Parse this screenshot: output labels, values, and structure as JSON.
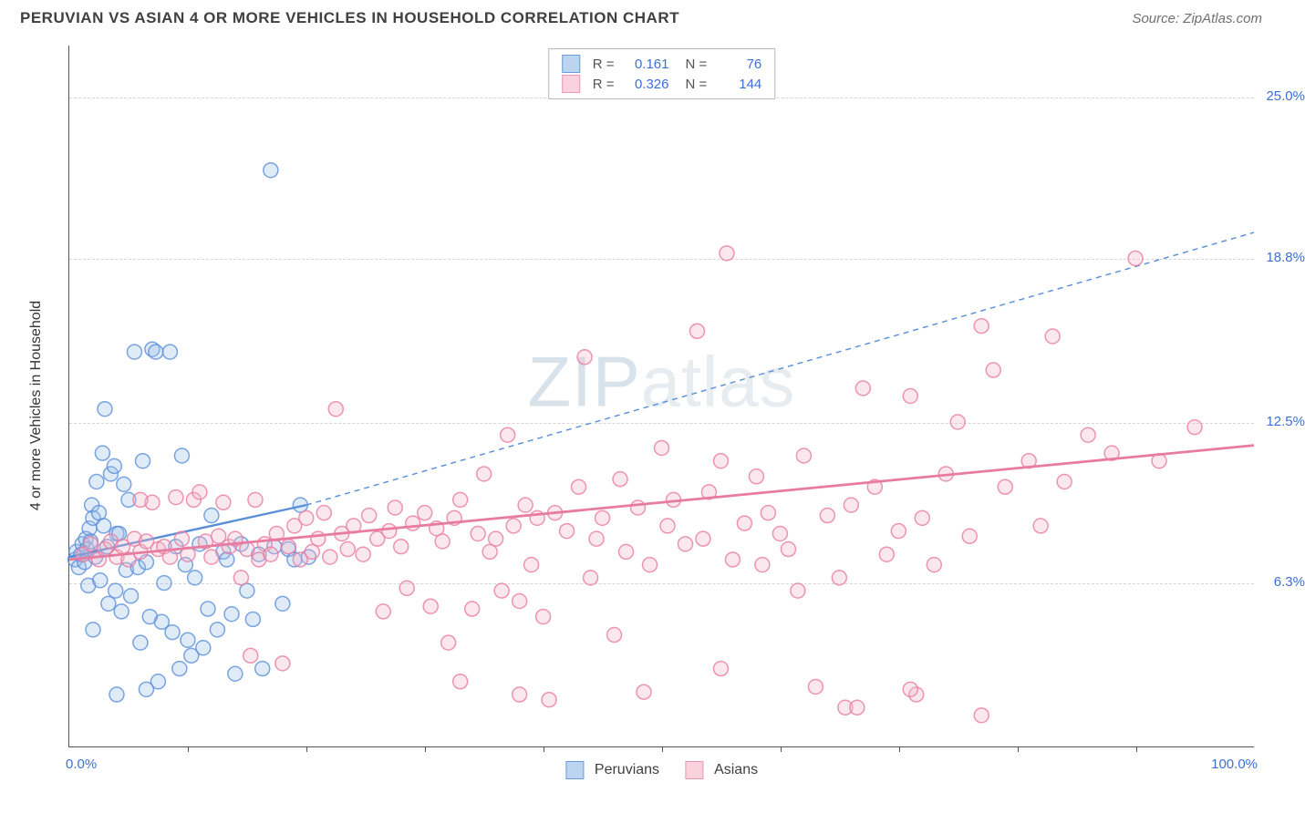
{
  "header": {
    "title": "PERUVIAN VS ASIAN 4 OR MORE VEHICLES IN HOUSEHOLD CORRELATION CHART",
    "source": "Source: ZipAtlas.com"
  },
  "chart": {
    "type": "scatter",
    "ylabel": "4 or more Vehicles in Household",
    "watermark": "ZIPatlas",
    "xlim": [
      0,
      100
    ],
    "ylim": [
      0,
      27
    ],
    "x_axis": {
      "min_label": "0.0%",
      "max_label": "100.0%",
      "tick_positions_pct": [
        10,
        20,
        30,
        40,
        50,
        60,
        70,
        80,
        90
      ]
    },
    "y_axis": {
      "gridlines": [
        {
          "value": 6.3,
          "label": "6.3%"
        },
        {
          "value": 12.5,
          "label": "12.5%"
        },
        {
          "value": 18.8,
          "label": "18.8%"
        },
        {
          "value": 25.0,
          "label": "25.0%"
        }
      ]
    },
    "background_color": "#ffffff",
    "grid_color": "#d5d5d5",
    "marker_radius": 8,
    "marker_fill_opacity": 0.32,
    "marker_stroke_width": 1.5,
    "series": [
      {
        "name": "Peruvians",
        "color_stroke": "#5a8fd8",
        "color_fill": "#9fc1ea",
        "swatch_fill": "#bcd4f0",
        "swatch_border": "#6b9edd",
        "R": "0.161",
        "N": "76",
        "trend": {
          "solid": {
            "x1": 0,
            "y1": 7.3,
            "x2": 20,
            "y2": 9.3
          },
          "dashed": {
            "x1": 20,
            "y1": 9.3,
            "x2": 100,
            "y2": 19.8
          },
          "line_width": 2.4,
          "dash": "6 5"
        },
        "points": [
          [
            0.5,
            7.2
          ],
          [
            0.6,
            7.5
          ],
          [
            0.8,
            6.9
          ],
          [
            1.0,
            7.4
          ],
          [
            1.1,
            7.8
          ],
          [
            1.3,
            7.1
          ],
          [
            1.4,
            8.0
          ],
          [
            1.5,
            7.6
          ],
          [
            1.6,
            6.2
          ],
          [
            1.7,
            8.4
          ],
          [
            1.8,
            7.9
          ],
          [
            1.9,
            9.3
          ],
          [
            2.0,
            8.8
          ],
          [
            2.2,
            7.3
          ],
          [
            2.3,
            10.2
          ],
          [
            2.5,
            9.0
          ],
          [
            2.6,
            6.4
          ],
          [
            2.8,
            11.3
          ],
          [
            2.9,
            8.5
          ],
          [
            3.0,
            13.0
          ],
          [
            3.2,
            7.7
          ],
          [
            3.3,
            5.5
          ],
          [
            3.5,
            10.5
          ],
          [
            3.8,
            10.8
          ],
          [
            3.9,
            6.0
          ],
          [
            4.0,
            8.2
          ],
          [
            4.2,
            8.2
          ],
          [
            4.4,
            5.2
          ],
          [
            4.6,
            10.1
          ],
          [
            4.8,
            6.8
          ],
          [
            5.0,
            9.5
          ],
          [
            5.2,
            5.8
          ],
          [
            5.5,
            15.2
          ],
          [
            5.8,
            6.9
          ],
          [
            6.0,
            4.0
          ],
          [
            6.2,
            11.0
          ],
          [
            6.5,
            7.1
          ],
          [
            6.8,
            5.0
          ],
          [
            7.0,
            15.3
          ],
          [
            7.3,
            15.2
          ],
          [
            7.5,
            2.5
          ],
          [
            7.8,
            4.8
          ],
          [
            8.0,
            6.3
          ],
          [
            8.5,
            15.2
          ],
          [
            8.7,
            4.4
          ],
          [
            9.0,
            7.7
          ],
          [
            9.3,
            3.0
          ],
          [
            9.5,
            11.2
          ],
          [
            9.8,
            7.0
          ],
          [
            10.0,
            4.1
          ],
          [
            10.3,
            3.5
          ],
          [
            10.6,
            6.5
          ],
          [
            11.0,
            7.8
          ],
          [
            11.3,
            3.8
          ],
          [
            11.7,
            5.3
          ],
          [
            12.0,
            8.9
          ],
          [
            12.5,
            4.5
          ],
          [
            13.0,
            7.5
          ],
          [
            13.3,
            7.2
          ],
          [
            13.7,
            5.1
          ],
          [
            14.0,
            2.8
          ],
          [
            14.5,
            7.8
          ],
          [
            15.0,
            6.0
          ],
          [
            15.5,
            4.9
          ],
          [
            16.0,
            7.4
          ],
          [
            16.3,
            3.0
          ],
          [
            17.0,
            22.2
          ],
          [
            17.3,
            7.7
          ],
          [
            18.0,
            5.5
          ],
          [
            18.5,
            7.6
          ],
          [
            19.0,
            7.2
          ],
          [
            19.5,
            9.3
          ],
          [
            20.2,
            7.3
          ],
          [
            4.0,
            2.0
          ],
          [
            6.5,
            2.2
          ],
          [
            2.0,
            4.5
          ]
        ]
      },
      {
        "name": "Asians",
        "color_stroke": "#e87ba0",
        "color_fill": "#f4b8cb",
        "swatch_fill": "#fad2dd",
        "swatch_border": "#ed96b3",
        "R": "0.326",
        "N": "144",
        "trend": {
          "solid": {
            "x1": 0,
            "y1": 7.2,
            "x2": 100,
            "y2": 11.6
          },
          "line_width": 2.8
        },
        "points": [
          [
            1.2,
            7.4
          ],
          [
            1.8,
            7.8
          ],
          [
            2.5,
            7.2
          ],
          [
            3.0,
            7.6
          ],
          [
            3.5,
            7.9
          ],
          [
            4.0,
            7.3
          ],
          [
            4.5,
            7.7
          ],
          [
            5.0,
            7.2
          ],
          [
            5.5,
            8.0
          ],
          [
            6.0,
            7.5
          ],
          [
            6.5,
            7.9
          ],
          [
            7.0,
            9.4
          ],
          [
            7.5,
            7.6
          ],
          [
            8.0,
            7.7
          ],
          [
            8.5,
            7.3
          ],
          [
            9.0,
            9.6
          ],
          [
            9.5,
            8.0
          ],
          [
            10.0,
            7.4
          ],
          [
            10.5,
            9.5
          ],
          [
            11.0,
            9.8
          ],
          [
            11.5,
            7.9
          ],
          [
            12.0,
            7.3
          ],
          [
            12.6,
            8.1
          ],
          [
            13.0,
            9.4
          ],
          [
            13.5,
            7.7
          ],
          [
            14.0,
            8.0
          ],
          [
            14.5,
            6.5
          ],
          [
            15.0,
            7.6
          ],
          [
            15.3,
            3.5
          ],
          [
            15.7,
            9.5
          ],
          [
            16.0,
            7.2
          ],
          [
            16.5,
            7.8
          ],
          [
            17.0,
            7.4
          ],
          [
            17.5,
            8.2
          ],
          [
            18.0,
            3.2
          ],
          [
            18.5,
            7.7
          ],
          [
            19.0,
            8.5
          ],
          [
            19.5,
            7.2
          ],
          [
            20.0,
            8.8
          ],
          [
            20.5,
            7.5
          ],
          [
            21.0,
            8.0
          ],
          [
            21.5,
            9.0
          ],
          [
            22.0,
            7.3
          ],
          [
            22.5,
            13.0
          ],
          [
            23.0,
            8.2
          ],
          [
            23.5,
            7.6
          ],
          [
            24.0,
            8.5
          ],
          [
            24.8,
            7.4
          ],
          [
            25.3,
            8.9
          ],
          [
            26.0,
            8.0
          ],
          [
            26.5,
            5.2
          ],
          [
            27.0,
            8.3
          ],
          [
            27.5,
            9.2
          ],
          [
            28.0,
            7.7
          ],
          [
            28.5,
            6.1
          ],
          [
            29.0,
            8.6
          ],
          [
            30.0,
            9.0
          ],
          [
            30.5,
            5.4
          ],
          [
            31.0,
            8.4
          ],
          [
            31.5,
            7.9
          ],
          [
            32.0,
            4.0
          ],
          [
            32.5,
            8.8
          ],
          [
            33.0,
            9.5
          ],
          [
            34.0,
            5.3
          ],
          [
            34.5,
            8.2
          ],
          [
            35.0,
            10.5
          ],
          [
            35.5,
            7.5
          ],
          [
            36.0,
            8.0
          ],
          [
            36.5,
            6.0
          ],
          [
            37.0,
            12.0
          ],
          [
            37.5,
            8.5
          ],
          [
            38.0,
            5.6
          ],
          [
            38.5,
            9.3
          ],
          [
            39.0,
            7.0
          ],
          [
            39.5,
            8.8
          ],
          [
            40.0,
            5.0
          ],
          [
            40.5,
            1.8
          ],
          [
            41.0,
            9.0
          ],
          [
            42.0,
            8.3
          ],
          [
            43.0,
            10.0
          ],
          [
            43.5,
            15.0
          ],
          [
            44.0,
            6.5
          ],
          [
            44.5,
            8.0
          ],
          [
            45.0,
            8.8
          ],
          [
            46.0,
            4.3
          ],
          [
            46.5,
            10.3
          ],
          [
            47.0,
            7.5
          ],
          [
            48.0,
            9.2
          ],
          [
            49.0,
            7.0
          ],
          [
            50.0,
            11.5
          ],
          [
            50.5,
            8.5
          ],
          [
            51.0,
            9.5
          ],
          [
            52.0,
            7.8
          ],
          [
            53.0,
            16.0
          ],
          [
            53.5,
            8.0
          ],
          [
            54.0,
            9.8
          ],
          [
            55.0,
            11.0
          ],
          [
            55.5,
            19.0
          ],
          [
            56.0,
            7.2
          ],
          [
            57.0,
            8.6
          ],
          [
            58.0,
            10.4
          ],
          [
            58.5,
            7.0
          ],
          [
            59.0,
            9.0
          ],
          [
            60.0,
            8.2
          ],
          [
            60.7,
            7.6
          ],
          [
            61.5,
            6.0
          ],
          [
            62.0,
            11.2
          ],
          [
            63.0,
            2.3
          ],
          [
            64.0,
            8.9
          ],
          [
            65.0,
            6.5
          ],
          [
            65.5,
            1.5
          ],
          [
            66.0,
            9.3
          ],
          [
            67.0,
            13.8
          ],
          [
            68.0,
            10.0
          ],
          [
            69.0,
            7.4
          ],
          [
            70.0,
            8.3
          ],
          [
            71.0,
            13.5
          ],
          [
            71.5,
            2.0
          ],
          [
            72.0,
            8.8
          ],
          [
            73.0,
            7.0
          ],
          [
            74.0,
            10.5
          ],
          [
            75.0,
            12.5
          ],
          [
            76.0,
            8.1
          ],
          [
            77.0,
            16.2
          ],
          [
            78.0,
            14.5
          ],
          [
            79.0,
            10.0
          ],
          [
            81.0,
            11.0
          ],
          [
            82.0,
            8.5
          ],
          [
            83.0,
            15.8
          ],
          [
            84.0,
            10.2
          ],
          [
            86.0,
            12.0
          ],
          [
            88.0,
            11.3
          ],
          [
            90.0,
            18.8
          ],
          [
            92.0,
            11.0
          ],
          [
            95.0,
            12.3
          ],
          [
            33.0,
            2.5
          ],
          [
            38.0,
            2.0
          ],
          [
            48.5,
            2.1
          ],
          [
            55.0,
            3.0
          ],
          [
            66.5,
            1.5
          ],
          [
            71.0,
            2.2
          ],
          [
            77.0,
            1.2
          ],
          [
            6.0,
            9.5
          ]
        ]
      }
    ],
    "legend_bottom": [
      {
        "label": "Peruvians",
        "series_idx": 0
      },
      {
        "label": "Asians",
        "series_idx": 1
      }
    ]
  }
}
